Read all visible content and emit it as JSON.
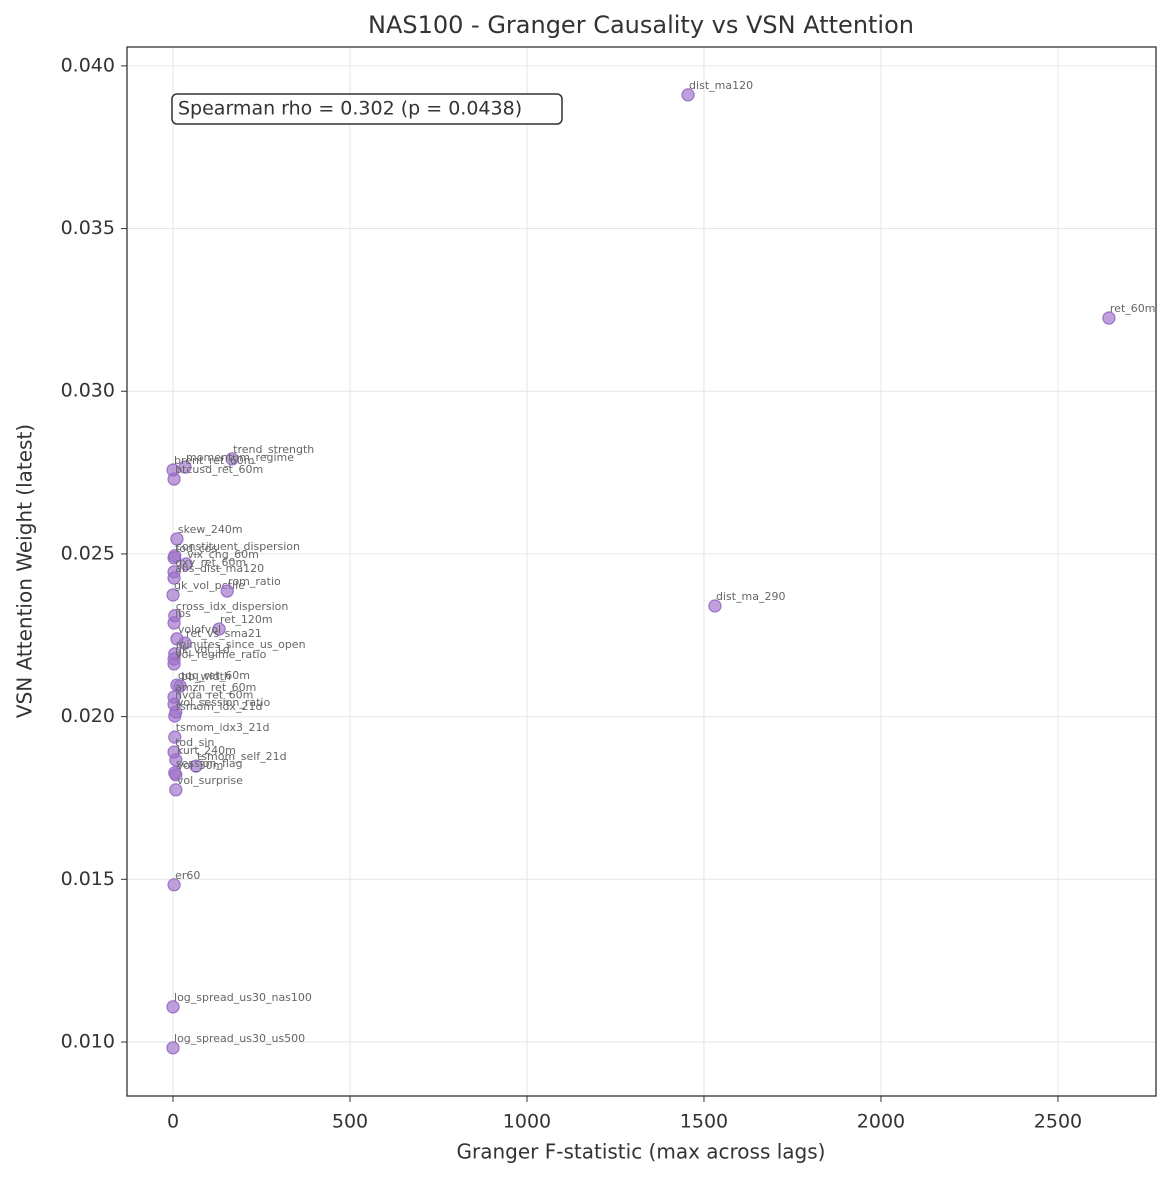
{
  "chart_data": {
    "type": "scatter",
    "title": "NAS100 - Granger Causality vs VSN Attention",
    "x_label": "Granger F-statistic (max across lags)",
    "y_label": "VSN Attention Weight (latest)",
    "annotation": "Spearman rho = 0.302 (p = 0.0438)",
    "color": "#9b6fc8",
    "grid": true,
    "xlim": [
      -130,
      2777
    ],
    "ylim": [
      0.00834,
      0.04058
    ],
    "xticks": [
      0,
      500,
      1000,
      1500,
      2000,
      2500
    ],
    "yticks": [
      {
        "value": 0.01,
        "label": "0.010"
      },
      0.015,
      {
        "value": 0.02,
        "label": "0.020"
      },
      0.025,
      {
        "value": 0.03,
        "label": "0.030"
      },
      0.035,
      {
        "value": 0.04,
        "label": "0.040"
      }
    ],
    "labels": [
      "dist_ma120",
      "ret_60m",
      "dist_ma_290",
      "trend_strength",
      "momentum_regime",
      "brent_ret_60m",
      "btcusd_ret_60m",
      "skew_240m",
      "constituent_dispersion",
      "tod_cos",
      "vix_chg_60m",
      "dxy_ret_60m",
      "abs_dist_ma120",
      "gk_vol_pctile",
      "rom_ratio",
      "cross_idx_dispersion",
      "ibs",
      "ret_120m",
      "volofvol",
      "ret_vs_sma21",
      "minutes_since_us_open",
      "gk_vol_1d",
      "vol_regime_ratio",
      "qqq_ret_60m",
      "bb_width",
      "amzn_ret_60m",
      "nvda_ret_60m",
      "vol_session_ratio",
      "tsmom_idx_21d",
      "tsmom_idx3_21d",
      "tod_sin",
      "kurt_240m",
      "tsmom_self_21d",
      "session_flag",
      "vol_30m",
      "vol_surprise",
      "er60",
      "log_spread_us30_nas100",
      "log_spread_us30_us500"
    ],
    "x": [
      1455,
      2644,
      1531,
      167,
      34,
      0,
      3,
      11,
      5,
      3,
      37,
      3,
      3,
      0,
      153,
      5,
      3,
      130,
      11,
      34,
      5,
      3,
      3,
      11,
      20,
      3,
      3,
      8,
      5,
      5,
      3,
      8,
      65,
      5,
      8,
      8,
      3,
      0,
      0
    ],
    "values": [
      0.03911,
      0.03225,
      0.0234,
      0.02792,
      0.02767,
      0.02758,
      0.0273,
      0.02546,
      0.02494,
      0.02488,
      0.02469,
      0.02445,
      0.02426,
      0.02374,
      0.02386,
      0.0231,
      0.02288,
      0.02269,
      0.02239,
      0.02226,
      0.02193,
      0.02177,
      0.02162,
      0.02097,
      0.02094,
      0.0206,
      0.02038,
      0.02014,
      0.02002,
      0.01937,
      0.01891,
      0.01867,
      0.01848,
      0.01827,
      0.01821,
      0.01775,
      0.01483,
      0.01108,
      0.00982
    ]
  }
}
